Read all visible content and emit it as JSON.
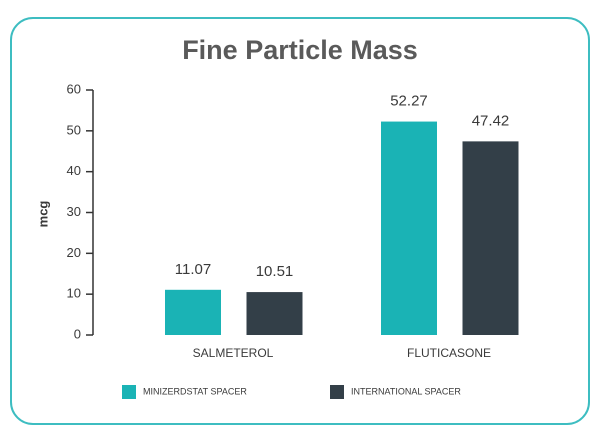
{
  "chart_data": {
    "type": "bar",
    "title": "Fine Particle Mass",
    "y_label": "mcg",
    "categories": [
      "SALMETEROL",
      "FLUTICASONE"
    ],
    "series": [
      {
        "name": "MINIZERDSTAT SPACER",
        "color": "#1ab3b5",
        "values": [
          11.07,
          52.27
        ]
      },
      {
        "name": "INTERNATIONAL SPACER",
        "color": "#333f48",
        "values": [
          10.51,
          47.42
        ]
      }
    ],
    "ylim": [
      0,
      60
    ],
    "yticks": [
      0,
      10,
      20,
      30,
      40,
      50,
      60
    ]
  }
}
